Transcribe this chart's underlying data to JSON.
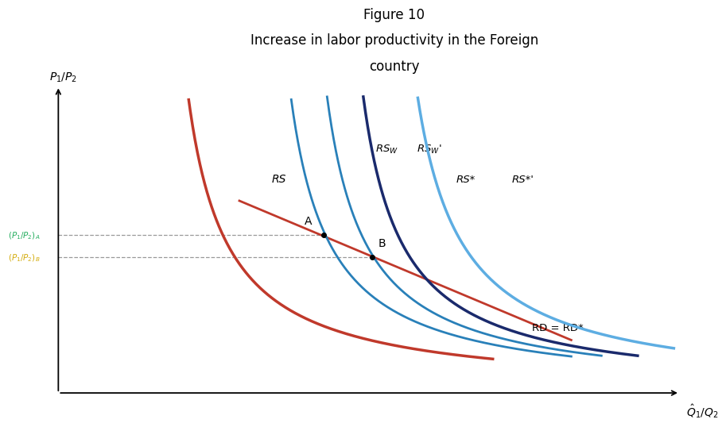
{
  "title_line1": "Figure 10",
  "title_line2": "Increase in labor productivity in the Foreign",
  "title_line3": "country",
  "title_fontsize": 12,
  "xlabel": "$\\hat{Q}_1/Q_2$",
  "ylabel": "$P_1/P_2$",
  "background_color": "#ffffff",
  "colors": {
    "RS_red": "#c0392b",
    "RSW_blue": "#2980b9",
    "RS_star_navy": "#1a2a6c",
    "RS_star_prime_cyan": "#5dade2",
    "RD_red": "#c0392b",
    "dashed": "#999999",
    "arrow_olive": "#8b8b3a",
    "p1p2_A_green": "#27ae60",
    "p1p2_B_yellow": "#d4ac0d",
    "black": "#000000"
  },
  "point_A": [
    0.44,
    0.53
  ],
  "point_B": [
    0.52,
    0.455
  ],
  "xlim": [
    0,
    1.05
  ],
  "ylim": [
    0,
    1.05
  ]
}
